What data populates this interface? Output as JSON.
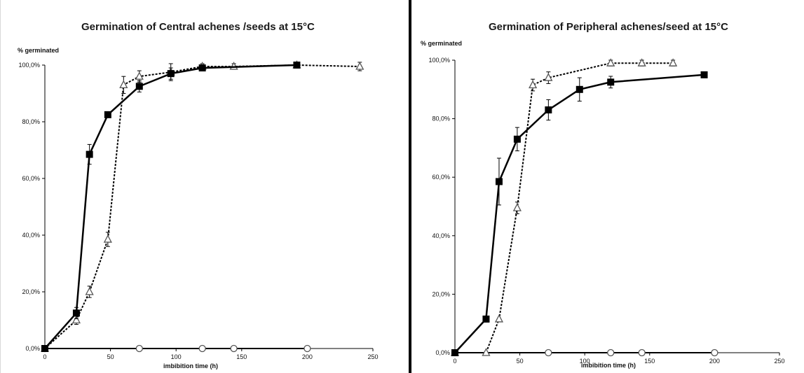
{
  "chart_data": [
    {
      "type": "line",
      "title": "Germination of Central achenes /seeds at 15°C",
      "ylabel": "% germinated",
      "xlabel": "imbibition time (h)",
      "xlim": [
        0,
        250
      ],
      "ylim": [
        0,
        100
      ],
      "x_ticks": [
        "0",
        "50",
        "100",
        "150",
        "200",
        "250"
      ],
      "y_ticks": [
        "0,0%",
        "20,0%",
        "40,0%",
        "60,0%",
        "80,0%",
        "100,0%"
      ],
      "grid": false,
      "series": [
        {
          "style": "solid",
          "marker": "filled-square",
          "color": "#000000",
          "x": [
            0,
            24,
            34,
            48,
            72,
            96,
            120,
            192
          ],
          "y": [
            0,
            12.5,
            68.5,
            82.5,
            92.5,
            97,
            99,
            100
          ],
          "err": [
            0,
            2,
            3.5,
            1,
            2,
            2,
            1,
            0
          ]
        },
        {
          "style": "dotted",
          "marker": "open-triangle",
          "color": "#000000",
          "x": [
            0,
            24,
            34,
            48,
            60,
            72,
            96,
            120,
            144,
            192,
            240
          ],
          "y": [
            0,
            10,
            20,
            38.5,
            93,
            96,
            97.5,
            99.5,
            99.5,
            100,
            99.5
          ],
          "err": [
            0,
            1.5,
            2,
            2.5,
            3,
            2,
            3,
            1,
            1,
            0,
            1.5
          ]
        },
        {
          "style": "solid",
          "marker": "open-circle",
          "color": "#000000",
          "x": [
            0,
            72,
            120,
            144,
            200
          ],
          "y": [
            0,
            0,
            0,
            0,
            0
          ],
          "err": [
            0,
            0,
            0,
            0,
            0
          ]
        }
      ]
    },
    {
      "type": "line",
      "title": "Germination of Peripheral achenes/seed at 15°C",
      "ylabel": "% germinated",
      "xlabel": "imbibition time (h)",
      "xlim": [
        0,
        250
      ],
      "ylim": [
        0,
        100
      ],
      "x_ticks": [
        "0",
        "50",
        "100",
        "150",
        "200",
        "250"
      ],
      "y_ticks": [
        "0,0%",
        "20,0%",
        "40,0%",
        "60,0%",
        "80,0%",
        "100,0%"
      ],
      "grid": false,
      "series": [
        {
          "style": "solid",
          "marker": "filled-square",
          "color": "#000000",
          "x": [
            0,
            24,
            34,
            48,
            72,
            96,
            120,
            192
          ],
          "y": [
            0,
            11.5,
            58.5,
            73,
            83,
            90,
            92.5,
            95
          ],
          "err": [
            0,
            0,
            8,
            4,
            3.5,
            4,
            2,
            0
          ]
        },
        {
          "style": "dotted",
          "marker": "open-triangle",
          "color": "#000000",
          "x": [
            0,
            24,
            34,
            48,
            60,
            72,
            120,
            144,
            168
          ],
          "y": [
            0,
            0,
            11.5,
            49.5,
            91.5,
            94,
            99,
            99,
            99
          ],
          "err": [
            0,
            0,
            0,
            2,
            2,
            2,
            1,
            1,
            1
          ]
        },
        {
          "style": "solid",
          "marker": "open-circle",
          "color": "#000000",
          "x": [
            0,
            72,
            120,
            144,
            200
          ],
          "y": [
            0,
            0,
            0,
            0,
            0
          ],
          "err": [
            0,
            0,
            0,
            0,
            0
          ]
        }
      ]
    }
  ]
}
